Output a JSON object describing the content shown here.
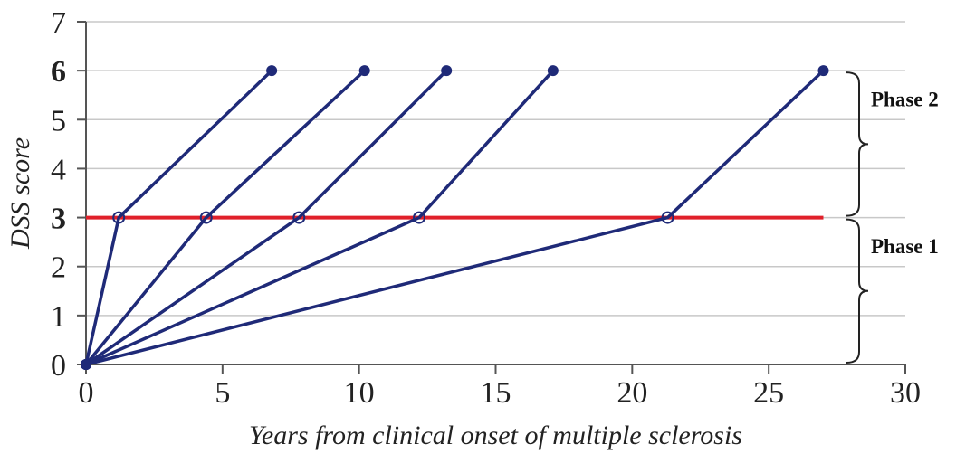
{
  "chart_data": {
    "type": "line",
    "title": "",
    "xlabel": "Years from clinical onset of multiple sclerosis",
    "ylabel": "DSS score",
    "xlim": [
      0,
      30
    ],
    "ylim": [
      0,
      7
    ],
    "x_ticks": [
      0,
      5,
      10,
      15,
      20,
      25,
      30
    ],
    "y_ticks": [
      0,
      1,
      2,
      3,
      4,
      5,
      6,
      7
    ],
    "highlighted_y_ticks": [
      3,
      6
    ],
    "highlight_color": "#cc2b2b",
    "grid": "horizontal",
    "series_color": "#1f2a78",
    "series": [
      {
        "points": [
          [
            0,
            0
          ],
          [
            1.2,
            3
          ],
          [
            6.8,
            6
          ]
        ]
      },
      {
        "points": [
          [
            0,
            0
          ],
          [
            4.4,
            3
          ],
          [
            10.2,
            6
          ]
        ]
      },
      {
        "points": [
          [
            0,
            0
          ],
          [
            7.8,
            3
          ],
          [
            13.2,
            6
          ]
        ]
      },
      {
        "points": [
          [
            0,
            0
          ],
          [
            12.2,
            3
          ],
          [
            17.1,
            6
          ]
        ]
      },
      {
        "points": [
          [
            0,
            0
          ],
          [
            21.3,
            3
          ],
          [
            27.0,
            6
          ]
        ]
      }
    ],
    "threshold_line": {
      "y": 3,
      "x_start": 0,
      "x_end": 27.0,
      "color": "#e0202a"
    },
    "annotations": [
      {
        "label": "Phase 2",
        "y_range": [
          3,
          6
        ]
      },
      {
        "label": "Phase 1",
        "y_range": [
          0,
          3
        ]
      }
    ]
  }
}
